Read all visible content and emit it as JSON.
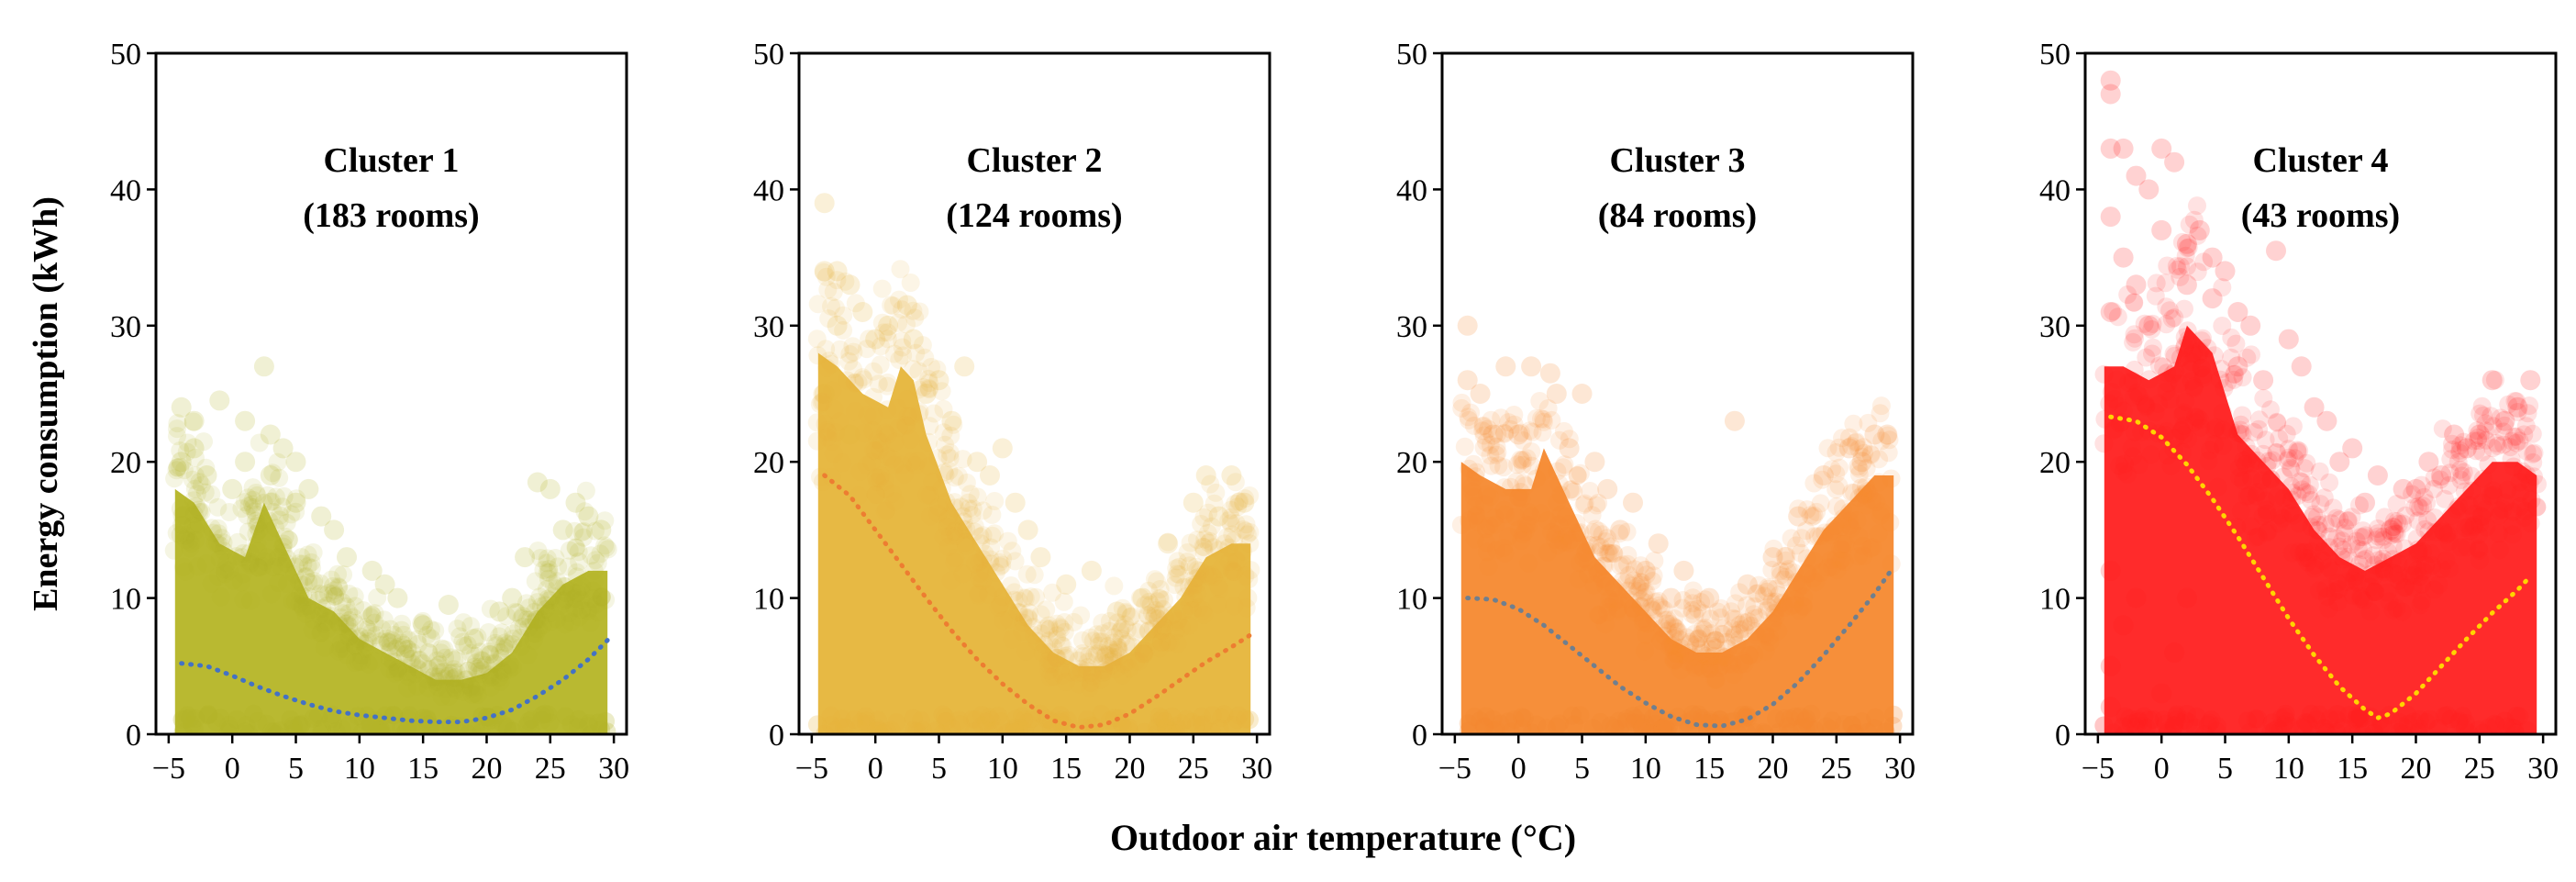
{
  "figure": {
    "ylabel": "Energy consumption (kWh)",
    "xlabel": "Outdoor air temperature (°C)"
  },
  "chart_data": [
    {
      "type": "scatter",
      "title_line1": "Cluster 1",
      "title_line2": "(183 rooms)",
      "color": "#b5b526",
      "fit_color": "#4472c4",
      "xlim": [
        -6,
        31
      ],
      "ylim": [
        0,
        50
      ],
      "xticks": [
        -5,
        0,
        5,
        10,
        15,
        20,
        25,
        30
      ],
      "xtick_labels": [
        "−5",
        "0",
        "5",
        "10",
        "15",
        "20",
        "25",
        "30"
      ],
      "yticks": [
        0,
        10,
        20,
        30,
        40,
        50
      ],
      "envelope": [
        [
          -4.5,
          18
        ],
        [
          -3,
          17
        ],
        [
          -1,
          14
        ],
        [
          1,
          13
        ],
        [
          2.5,
          17
        ],
        [
          4,
          14
        ],
        [
          6,
          10
        ],
        [
          8,
          9
        ],
        [
          10,
          7
        ],
        [
          12,
          6
        ],
        [
          14,
          5
        ],
        [
          16,
          4
        ],
        [
          18,
          4
        ],
        [
          20,
          4.5
        ],
        [
          22,
          6
        ],
        [
          24,
          9
        ],
        [
          26,
          11
        ],
        [
          28,
          12
        ],
        [
          29.5,
          12
        ]
      ],
      "trend": [
        [
          -4,
          5.2
        ],
        [
          -2,
          5.0
        ],
        [
          0,
          4.3
        ],
        [
          2,
          3.5
        ],
        [
          4,
          2.8
        ],
        [
          6,
          2.2
        ],
        [
          8,
          1.7
        ],
        [
          10,
          1.4
        ],
        [
          12,
          1.2
        ],
        [
          14,
          1.0
        ],
        [
          16,
          0.9
        ],
        [
          18,
          0.9
        ],
        [
          20,
          1.2
        ],
        [
          22,
          1.8
        ],
        [
          24,
          2.8
        ],
        [
          26,
          4.0
        ],
        [
          28,
          5.5
        ],
        [
          29.5,
          6.9
        ]
      ],
      "outliers": [
        [
          -4,
          24
        ],
        [
          -3,
          23
        ],
        [
          -1,
          24.5
        ],
        [
          1,
          23
        ],
        [
          2.5,
          27
        ],
        [
          3,
          22
        ],
        [
          4,
          21
        ],
        [
          5,
          20
        ],
        [
          6,
          18
        ],
        [
          7,
          16
        ],
        [
          -4,
          20
        ],
        [
          -2,
          19
        ],
        [
          0,
          18
        ],
        [
          9,
          13
        ],
        [
          11,
          12
        ],
        [
          13,
          10
        ],
        [
          17,
          9.5
        ],
        [
          19,
          7
        ],
        [
          22,
          10
        ],
        [
          24,
          18.5
        ],
        [
          25,
          18
        ],
        [
          27,
          17
        ],
        [
          28,
          16
        ],
        [
          29,
          15
        ],
        [
          26,
          15
        ],
        [
          23,
          13
        ],
        [
          8,
          15
        ],
        [
          3,
          19
        ],
        [
          1,
          20
        ],
        [
          -3,
          21
        ],
        [
          5,
          17
        ],
        [
          12,
          11
        ],
        [
          15,
          8
        ],
        [
          21,
          9
        ]
      ]
    },
    {
      "type": "scatter",
      "title_line1": "Cluster 2",
      "title_line2": "(124 rooms)",
      "color": "#e6b53a",
      "fit_color": "#ed7d31",
      "xlim": [
        -6,
        31
      ],
      "ylim": [
        0,
        50
      ],
      "xticks": [
        -5,
        0,
        5,
        10,
        15,
        20,
        25,
        30
      ],
      "xtick_labels": [
        "−5",
        "0",
        "5",
        "10",
        "15",
        "20",
        "25",
        "30"
      ],
      "yticks": [
        0,
        10,
        20,
        30,
        40,
        50
      ],
      "envelope": [
        [
          -4.5,
          28
        ],
        [
          -3,
          27
        ],
        [
          -1,
          25
        ],
        [
          1,
          24
        ],
        [
          2,
          27
        ],
        [
          3,
          26
        ],
        [
          4,
          22
        ],
        [
          6,
          17
        ],
        [
          8,
          14
        ],
        [
          10,
          11
        ],
        [
          12,
          8
        ],
        [
          14,
          6
        ],
        [
          16,
          5
        ],
        [
          18,
          5
        ],
        [
          20,
          6
        ],
        [
          22,
          8
        ],
        [
          24,
          10
        ],
        [
          26,
          13
        ],
        [
          28,
          14
        ],
        [
          29.5,
          14
        ]
      ],
      "trend": [
        [
          -4,
          19
        ],
        [
          -2,
          17.5
        ],
        [
          0,
          15
        ],
        [
          2,
          12.5
        ],
        [
          4,
          10
        ],
        [
          6,
          7.6
        ],
        [
          8,
          5.5
        ],
        [
          10,
          3.7
        ],
        [
          12,
          2.2
        ],
        [
          14,
          1.0
        ],
        [
          16,
          0.5
        ],
        [
          18,
          0.7
        ],
        [
          20,
          1.5
        ],
        [
          22,
          2.7
        ],
        [
          24,
          4.0
        ],
        [
          26,
          5.3
        ],
        [
          28,
          6.4
        ],
        [
          29.5,
          7.3
        ]
      ],
      "outliers": [
        [
          -4,
          39
        ],
        [
          -4,
          34
        ],
        [
          -3,
          34
        ],
        [
          -2,
          33
        ],
        [
          -1,
          31
        ],
        [
          1,
          30
        ],
        [
          2.5,
          31.5
        ],
        [
          3,
          29
        ],
        [
          5,
          26
        ],
        [
          6,
          23
        ],
        [
          7,
          27
        ],
        [
          8,
          20
        ],
        [
          9,
          19
        ],
        [
          11,
          17
        ],
        [
          13,
          13
        ],
        [
          15,
          11
        ],
        [
          17,
          12
        ],
        [
          19,
          9
        ],
        [
          21,
          10
        ],
        [
          23,
          14
        ],
        [
          25,
          17
        ],
        [
          26,
          19
        ],
        [
          27,
          16
        ],
        [
          28,
          19
        ],
        [
          29,
          17
        ],
        [
          -3,
          30
        ],
        [
          0,
          29
        ],
        [
          4,
          25
        ],
        [
          10,
          21
        ],
        [
          12,
          15
        ],
        [
          -4,
          25
        ],
        [
          -2,
          22
        ]
      ]
    },
    {
      "type": "scatter",
      "title_line1": "Cluster 3",
      "title_line2": "(84 rooms)",
      "color": "#f5892f",
      "fit_color": "#6f7f8f",
      "xlim": [
        -6,
        31
      ],
      "ylim": [
        0,
        50
      ],
      "xticks": [
        -5,
        0,
        5,
        10,
        15,
        20,
        25,
        30
      ],
      "xtick_labels": [
        "−5",
        "0",
        "5",
        "10",
        "15",
        "20",
        "25",
        "30"
      ],
      "yticks": [
        0,
        10,
        20,
        30,
        40,
        50
      ],
      "envelope": [
        [
          -4.5,
          20
        ],
        [
          -3,
          19
        ],
        [
          -1,
          18
        ],
        [
          1,
          18
        ],
        [
          2,
          21
        ],
        [
          3,
          19
        ],
        [
          4,
          17
        ],
        [
          6,
          13
        ],
        [
          8,
          11
        ],
        [
          10,
          9
        ],
        [
          12,
          7
        ],
        [
          14,
          6
        ],
        [
          16,
          6
        ],
        [
          18,
          7
        ],
        [
          20,
          9
        ],
        [
          22,
          12
        ],
        [
          24,
          15
        ],
        [
          26,
          17
        ],
        [
          28,
          19
        ],
        [
          29.5,
          19
        ]
      ],
      "trend": [
        [
          -4,
          10
        ],
        [
          -2,
          9.9
        ],
        [
          0,
          9.2
        ],
        [
          2,
          8.0
        ],
        [
          4,
          6.5
        ],
        [
          6,
          5.0
        ],
        [
          8,
          3.5
        ],
        [
          10,
          2.3
        ],
        [
          12,
          1.3
        ],
        [
          14,
          0.7
        ],
        [
          16,
          0.6
        ],
        [
          18,
          1.1
        ],
        [
          20,
          2.2
        ],
        [
          22,
          3.8
        ],
        [
          24,
          5.8
        ],
        [
          26,
          8.0
        ],
        [
          28,
          10.3
        ],
        [
          29.5,
          12.3
        ]
      ],
      "outliers": [
        [
          -4,
          30
        ],
        [
          -4,
          26
        ],
        [
          -3,
          25
        ],
        [
          -1,
          27
        ],
        [
          1,
          27
        ],
        [
          2.5,
          26.5
        ],
        [
          3,
          25
        ],
        [
          5,
          25
        ],
        [
          6,
          20
        ],
        [
          7,
          18
        ],
        [
          9,
          17
        ],
        [
          11,
          14
        ],
        [
          13,
          12
        ],
        [
          15,
          10
        ],
        [
          17,
          23
        ],
        [
          18,
          11
        ],
        [
          20,
          13
        ],
        [
          22,
          16
        ],
        [
          24,
          19
        ],
        [
          26,
          21
        ],
        [
          28,
          22
        ],
        [
          29,
          22
        ],
        [
          27,
          20
        ],
        [
          0,
          22
        ],
        [
          -2,
          22
        ],
        [
          4,
          21
        ],
        [
          8,
          15
        ],
        [
          10,
          12
        ],
        [
          12,
          10
        ]
      ]
    },
    {
      "type": "scatter",
      "title_line1": "Cluster 4",
      "title_line2": "(43 rooms)",
      "color": "#ff2020",
      "fit_color": "#ffd400",
      "xlim": [
        -6,
        31
      ],
      "ylim": [
        0,
        50
      ],
      "xticks": [
        -5,
        0,
        5,
        10,
        15,
        20,
        25,
        30
      ],
      "xtick_labels": [
        "−5",
        "0",
        "5",
        "10",
        "15",
        "20",
        "25",
        "30"
      ],
      "yticks": [
        0,
        10,
        20,
        30,
        40,
        50
      ],
      "envelope": [
        [
          -4.5,
          27
        ],
        [
          -3,
          27
        ],
        [
          -1,
          26
        ],
        [
          1,
          27
        ],
        [
          2,
          30
        ],
        [
          3,
          29
        ],
        [
          4,
          28
        ],
        [
          5,
          25
        ],
        [
          6,
          22
        ],
        [
          8,
          20
        ],
        [
          10,
          18
        ],
        [
          12,
          15
        ],
        [
          14,
          13
        ],
        [
          16,
          12
        ],
        [
          18,
          13
        ],
        [
          20,
          14
        ],
        [
          22,
          16
        ],
        [
          24,
          18
        ],
        [
          26,
          20
        ],
        [
          28,
          20
        ],
        [
          29.5,
          19
        ]
      ],
      "trend": [
        [
          -4,
          23.3
        ],
        [
          -2,
          23.0
        ],
        [
          0,
          21.8
        ],
        [
          2,
          19.8
        ],
        [
          4,
          17.3
        ],
        [
          6,
          14.5
        ],
        [
          8,
          11.5
        ],
        [
          10,
          8.5
        ],
        [
          12,
          5.8
        ],
        [
          14,
          3.5
        ],
        [
          16,
          1.8
        ],
        [
          17,
          1.2
        ],
        [
          18,
          1.5
        ],
        [
          20,
          3.0
        ],
        [
          22,
          5.0
        ],
        [
          24,
          7.0
        ],
        [
          26,
          8.9
        ],
        [
          28,
          10.6
        ],
        [
          29,
          11.6
        ]
      ],
      "outliers": [
        [
          -4,
          48
        ],
        [
          -4,
          47
        ],
        [
          -4,
          43
        ],
        [
          -3,
          43
        ],
        [
          -2,
          41
        ],
        [
          -1,
          40
        ],
        [
          0,
          43
        ],
        [
          1,
          42
        ],
        [
          2,
          36
        ],
        [
          3,
          37
        ],
        [
          4,
          35
        ],
        [
          5,
          34
        ],
        [
          6,
          31
        ],
        [
          7,
          30
        ],
        [
          9,
          35.5
        ],
        [
          10,
          29
        ],
        [
          11,
          27
        ],
        [
          13,
          23
        ],
        [
          15,
          21
        ],
        [
          17,
          19
        ],
        [
          19,
          18
        ],
        [
          21,
          20
        ],
        [
          23,
          22
        ],
        [
          25,
          22
        ],
        [
          26,
          26
        ],
        [
          27,
          23
        ],
        [
          28,
          24
        ],
        [
          29,
          26
        ],
        [
          -4,
          38
        ],
        [
          -3,
          35
        ],
        [
          -2,
          33
        ],
        [
          -4,
          31
        ],
        [
          -1,
          30
        ],
        [
          0,
          37
        ],
        [
          2,
          33
        ],
        [
          4,
          32
        ],
        [
          6,
          27
        ],
        [
          8,
          26
        ],
        [
          12,
          24
        ],
        [
          14,
          20
        ],
        [
          16,
          17
        ],
        [
          18,
          15
        ],
        [
          20,
          18
        ],
        [
          22,
          19
        ],
        [
          24,
          21
        ],
        [
          -4,
          5
        ],
        [
          -3,
          8
        ],
        [
          -4,
          12
        ],
        [
          -2,
          10
        ],
        [
          -4,
          2
        ],
        [
          -3,
          0.5
        ],
        [
          -1,
          1
        ],
        [
          0,
          3
        ],
        [
          1,
          6
        ],
        [
          2,
          10
        ]
      ]
    }
  ]
}
